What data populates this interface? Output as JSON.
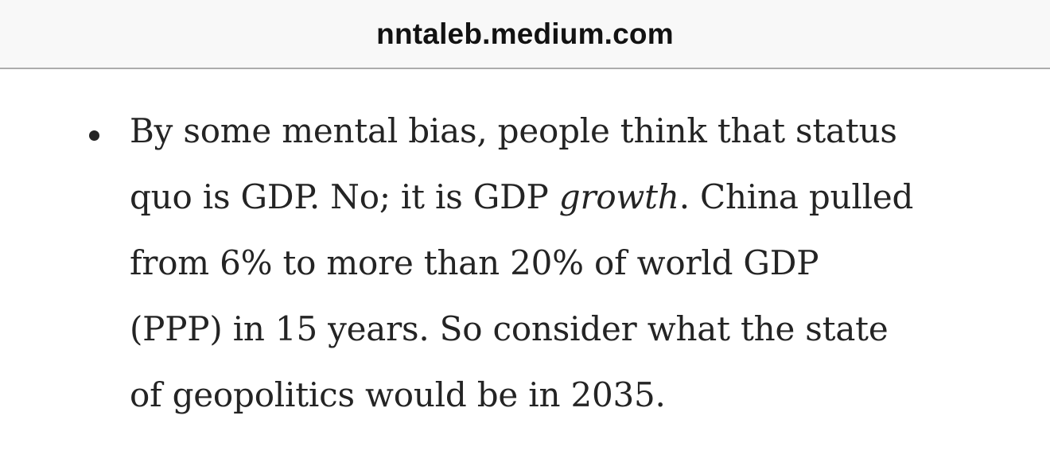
{
  "browser_bar": {
    "url": "nntaleb.medium.com"
  },
  "article": {
    "bullet_item": {
      "lines": [
        {
          "text": "By some mental bias, people think that status"
        },
        {
          "before_italic": "quo is GDP. No; it is GDP ",
          "italic": "growth",
          "after_italic": ". China pulled"
        },
        {
          "text": "from 6% to more than 20% of world GDP"
        },
        {
          "text": "(PPP) in 15 years. So consider what the state"
        },
        {
          "text": "of geopolitics would be in 2035."
        }
      ]
    }
  },
  "colors": {
    "bar_background": "#f8f8f8",
    "bar_border": "#acacac",
    "page_background": "#ffffff",
    "body_text": "#242424",
    "url_text": "#121212"
  }
}
